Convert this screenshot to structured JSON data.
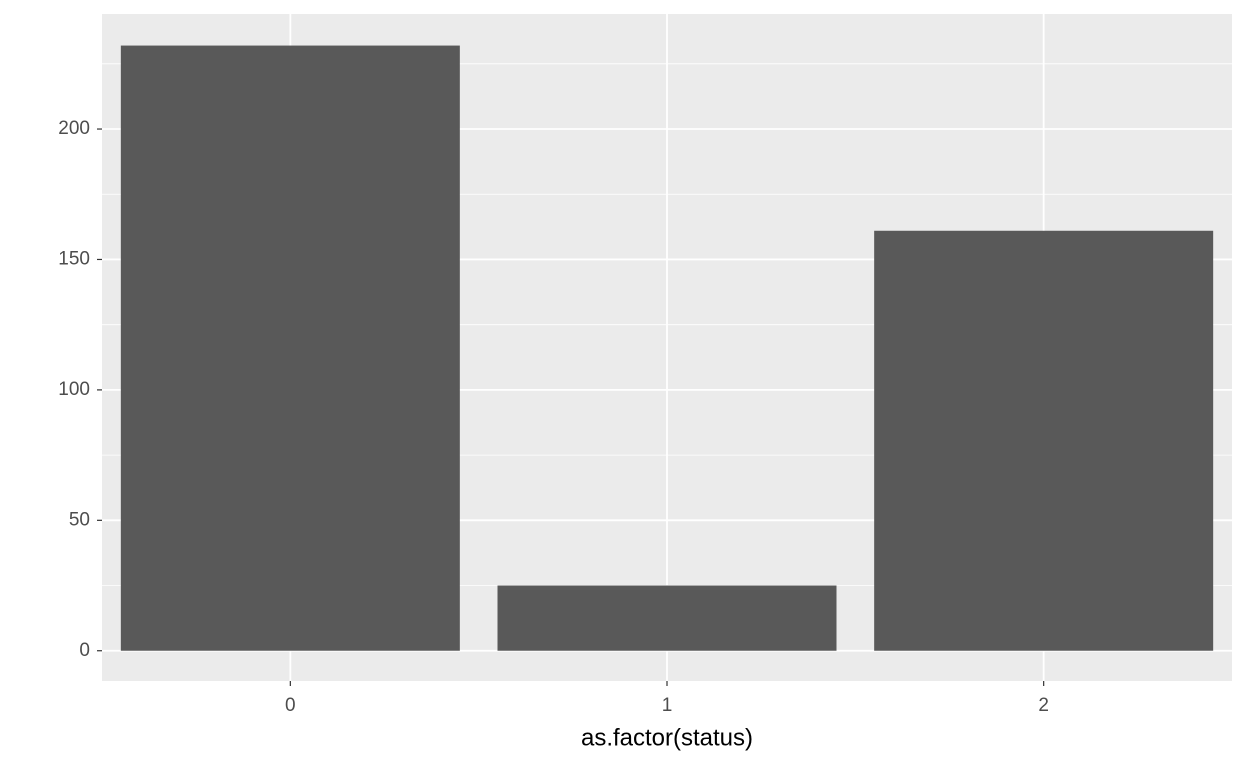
{
  "chart_data": {
    "type": "bar",
    "x_label": "as.factor(status)",
    "categories": [
      "0",
      "1",
      "2"
    ],
    "values": [
      232,
      25,
      161
    ],
    "color": "#595959",
    "ylim": [
      -11.6,
      244.1
    ],
    "yticks": [
      0,
      50,
      100,
      150,
      200
    ],
    "grid": true
  }
}
